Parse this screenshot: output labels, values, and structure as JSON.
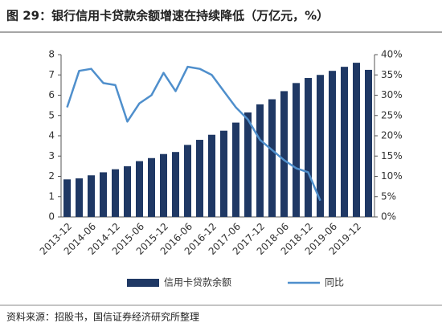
{
  "chart_data": {
    "type": "bar_line",
    "title": "图 29：银行信用卡贷款余额增速在持续降低（万亿元，%）",
    "source": "资料来源：招股书，国信证券经济研究所整理",
    "categories": [
      "2013-12",
      null,
      "2014-06",
      null,
      "2014-12",
      null,
      "2015-06",
      null,
      "2015-12",
      null,
      "2016-06",
      null,
      "2016-12",
      null,
      "2017-06",
      null,
      "2017-12",
      null,
      "2018-06",
      null,
      "2018-12",
      null,
      "2019-06",
      null,
      "2019-12",
      null
    ],
    "series": [
      {
        "name": "信用卡贷款余额",
        "color": "#1f3864",
        "kind": "bar",
        "values": [
          1.85,
          1.9,
          2.05,
          2.2,
          2.35,
          2.5,
          2.75,
          2.9,
          3.1,
          3.2,
          3.55,
          3.8,
          4.05,
          4.25,
          4.65,
          5.15,
          5.55,
          5.8,
          6.2,
          6.6,
          6.85,
          7.0,
          7.2,
          7.4,
          7.6,
          7.25
        ]
      },
      {
        "name": "同比",
        "color": "#4f8fcc",
        "kind": "line",
        "axis": "y2",
        "values": [
          27,
          36,
          36.5,
          33,
          32.5,
          23.5,
          28,
          30,
          35.5,
          31,
          37,
          36.5,
          35,
          31,
          27,
          24,
          19,
          16.5,
          14,
          12,
          11,
          4,
          null,
          null,
          null,
          null
        ]
      }
    ],
    "ylim": [
      0,
      8
    ],
    "yticks": [
      0,
      1,
      2,
      3,
      4,
      5,
      6,
      7,
      8
    ],
    "y2lim": [
      0,
      40
    ],
    "y2ticks": [
      {
        "value": 0,
        "label": "0%"
      },
      {
        "value": 5,
        "label": "5%"
      },
      {
        "value": 10,
        "label": "10%"
      },
      {
        "value": 15,
        "label": "15%"
      },
      {
        "value": 20,
        "label": "20%"
      },
      {
        "value": 25,
        "label": "25%"
      },
      {
        "value": 30,
        "label": "30%"
      },
      {
        "value": 35,
        "label": "35%"
      },
      {
        "value": 40,
        "label": "40%"
      }
    ],
    "legend": "bottom"
  }
}
